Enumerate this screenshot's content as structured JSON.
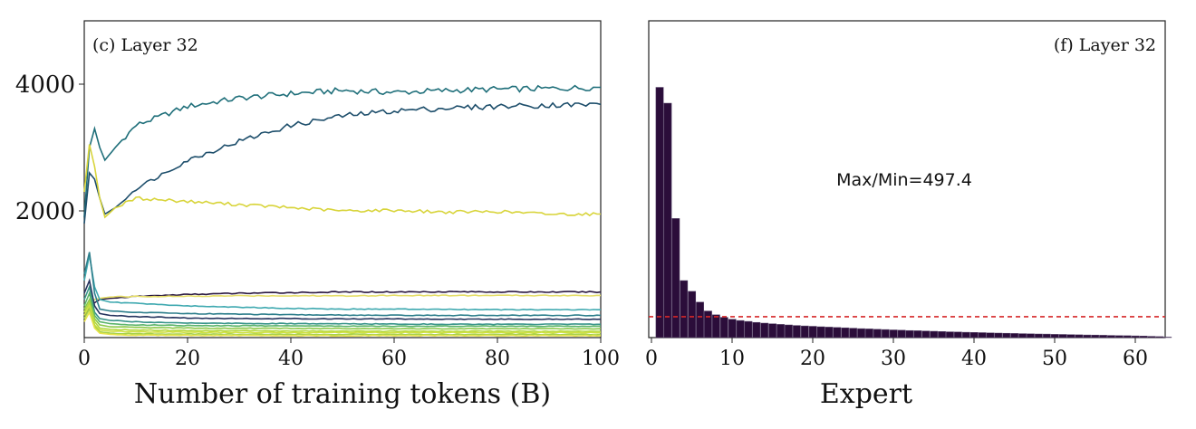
{
  "chart_data": [
    {
      "type": "line",
      "panel_label": "(c) Layer 32",
      "xlabel": "Number of training tokens (B)",
      "ylabel": "",
      "xlim": [
        0,
        100
      ],
      "ylim": [
        0,
        5000
      ],
      "xticks": [
        0,
        20,
        40,
        60,
        80,
        100
      ],
      "yticks": [
        2000,
        4000
      ],
      "grid": false,
      "series": [
        {
          "color": "#1f6f7a",
          "x": [
            0,
            1,
            2,
            3,
            4,
            6,
            10,
            20,
            30,
            40,
            50,
            60,
            70,
            80,
            90,
            100
          ],
          "y": [
            1900,
            3000,
            3300,
            3000,
            2800,
            3000,
            3350,
            3650,
            3780,
            3850,
            3900,
            3870,
            3900,
            3920,
            3930,
            3950
          ]
        },
        {
          "color": "#1d4e6b",
          "x": [
            0,
            1,
            2,
            3,
            4,
            6,
            10,
            20,
            30,
            40,
            50,
            60,
            70,
            80,
            90,
            100
          ],
          "y": [
            1800,
            2600,
            2500,
            2200,
            1950,
            2050,
            2350,
            2800,
            3100,
            3350,
            3500,
            3580,
            3620,
            3650,
            3670,
            3680
          ]
        },
        {
          "color": "#d8d43a",
          "x": [
            0,
            1,
            2,
            3,
            4,
            6,
            10,
            20,
            30,
            40,
            50,
            60,
            70,
            80,
            90,
            100
          ],
          "y": [
            2300,
            3050,
            2700,
            2200,
            1900,
            2050,
            2200,
            2150,
            2100,
            2050,
            2000,
            2010,
            1980,
            1990,
            1950,
            1950
          ]
        },
        {
          "color": "#2a1840",
          "x": [
            0,
            1,
            2,
            3,
            5,
            10,
            20,
            30,
            40,
            50,
            60,
            70,
            80,
            90,
            100
          ],
          "y": [
            300,
            500,
            550,
            600,
            620,
            650,
            680,
            700,
            710,
            720,
            720,
            725,
            720,
            720,
            720
          ]
        },
        {
          "color": "#e6de6a",
          "x": [
            0,
            1,
            2,
            3,
            5,
            10,
            20,
            30,
            40,
            50,
            60,
            70,
            80,
            90,
            100
          ],
          "y": [
            400,
            550,
            600,
            620,
            640,
            650,
            650,
            660,
            660,
            660,
            665,
            665,
            665,
            665,
            665
          ]
        },
        {
          "color": "#3fa9b0",
          "x": [
            0,
            1,
            2,
            3,
            5,
            10,
            20,
            30,
            40,
            50,
            60,
            70,
            80,
            90,
            100
          ],
          "y": [
            900,
            1300,
            800,
            600,
            560,
            540,
            500,
            480,
            460,
            450,
            450,
            445,
            440,
            440,
            440
          ]
        },
        {
          "color": "#2e7f8c",
          "x": [
            0,
            1,
            2,
            3,
            5,
            10,
            20,
            30,
            40,
            50,
            60,
            70,
            80,
            90,
            100
          ],
          "y": [
            1000,
            1350,
            700,
            450,
            420,
            400,
            380,
            370,
            360,
            355,
            350,
            350,
            350,
            350,
            350
          ]
        },
        {
          "color": "#26345e",
          "x": [
            0,
            1,
            2,
            3,
            5,
            10,
            20,
            30,
            40,
            50,
            60,
            70,
            80,
            90,
            100
          ],
          "y": [
            700,
            900,
            500,
            380,
            350,
            330,
            310,
            300,
            300,
            295,
            295,
            290,
            290,
            290,
            290
          ]
        },
        {
          "color": "#39958a",
          "x": [
            0,
            1,
            2,
            3,
            5,
            10,
            20,
            40,
            60,
            80,
            100
          ],
          "y": [
            600,
            800,
            400,
            300,
            270,
            250,
            230,
            220,
            215,
            210,
            210
          ]
        },
        {
          "color": "#5bb46a",
          "x": [
            0,
            1,
            2,
            3,
            5,
            10,
            20,
            40,
            60,
            80,
            100
          ],
          "y": [
            500,
            700,
            350,
            250,
            220,
            200,
            190,
            185,
            180,
            180,
            180
          ]
        },
        {
          "color": "#8cc94a",
          "x": [
            0,
            1,
            2,
            3,
            5,
            10,
            20,
            40,
            60,
            80,
            100
          ],
          "y": [
            450,
            600,
            300,
            200,
            170,
            160,
            150,
            145,
            140,
            140,
            140
          ]
        },
        {
          "color": "#b5d83c",
          "x": [
            0,
            1,
            2,
            3,
            5,
            10,
            20,
            40,
            60,
            80,
            100
          ],
          "y": [
            400,
            550,
            250,
            150,
            130,
            120,
            110,
            105,
            100,
            100,
            100
          ]
        },
        {
          "color": "#cfe043",
          "x": [
            0,
            1,
            2,
            3,
            5,
            10,
            20,
            40,
            60,
            80,
            100
          ],
          "y": [
            350,
            500,
            200,
            120,
            100,
            90,
            85,
            80,
            80,
            80,
            80
          ]
        },
        {
          "color": "#a7d24a",
          "x": [
            0,
            1,
            2,
            3,
            5,
            10,
            20,
            40,
            60,
            80,
            100
          ],
          "y": [
            300,
            450,
            180,
            90,
            70,
            60,
            55,
            50,
            50,
            50,
            50
          ]
        },
        {
          "color": "#e8e34a",
          "x": [
            0,
            1,
            2,
            3,
            5,
            10,
            20,
            40,
            60,
            80,
            100
          ],
          "y": [
            250,
            400,
            150,
            70,
            50,
            40,
            35,
            30,
            30,
            30,
            30
          ]
        }
      ]
    },
    {
      "type": "bar",
      "panel_label": "(f) Layer 32",
      "xlabel": "Expert",
      "ylabel": "",
      "annotation": "Max/Min=497.4",
      "xlim": [
        0,
        64
      ],
      "ylim": [
        0,
        5000
      ],
      "xticks": [
        0,
        10,
        20,
        30,
        40,
        50,
        60
      ],
      "reference_line": 330,
      "reference_line_color": "#d62728",
      "bar_color": "#2b0d3a",
      "values": [
        3950,
        3700,
        1880,
        900,
        730,
        560,
        420,
        360,
        320,
        290,
        270,
        255,
        240,
        228,
        218,
        208,
        200,
        192,
        185,
        178,
        172,
        166,
        160,
        154,
        148,
        142,
        137,
        132,
        127,
        122,
        117,
        112,
        108,
        104,
        100,
        96,
        92,
        88,
        85,
        82,
        78,
        75,
        72,
        69,
        66,
        63,
        60,
        57,
        55,
        52,
        50,
        47,
        45,
        42,
        40,
        37,
        35,
        32,
        30,
        27,
        24,
        20,
        15,
        8
      ]
    }
  ]
}
